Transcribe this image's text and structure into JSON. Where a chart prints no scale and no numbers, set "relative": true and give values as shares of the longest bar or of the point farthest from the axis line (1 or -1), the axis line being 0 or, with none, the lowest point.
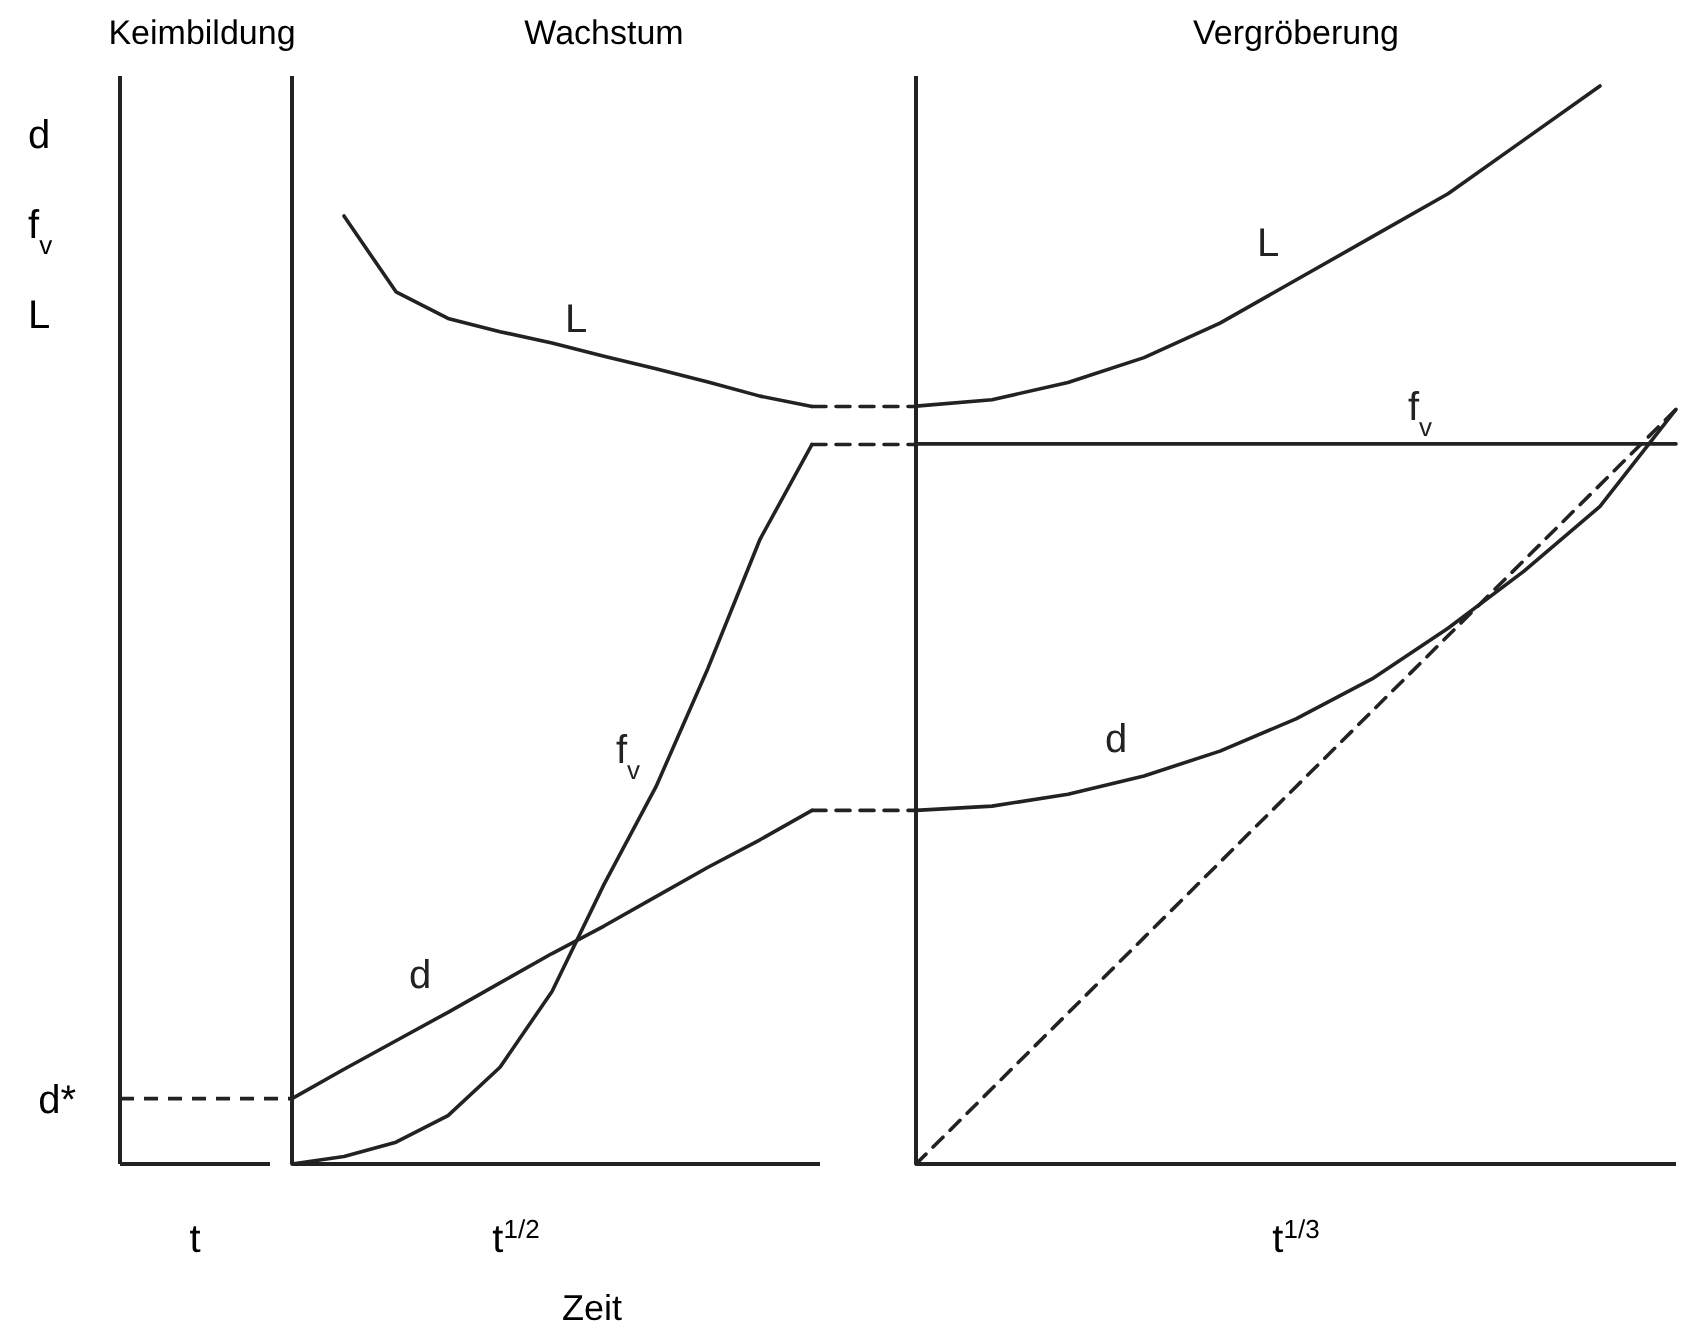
{
  "chart_data": [
    {
      "type": "other",
      "title": "Keimbildung",
      "xlabel": "t",
      "annotations": [
        "d",
        "f$_{v}$",
        "L"
      ]
    },
    {
      "type": "line",
      "title": "Wachstum",
      "xlabel": "t$^{1/2}$",
      "relative": true,
      "annotations": [
        "Zeit"
      ],
      "categories": [
        null,
        null,
        null,
        null,
        null,
        null,
        null,
        null,
        null,
        null,
        null,
        null,
        null
      ],
      "ref_lines": [
        {
          "axis": "y",
          "value": 0.069,
          "label": "d*",
          "line_style": "dashed",
          "color": "#222222"
        }
      ],
      "series": [
        {
          "name": "L",
          "color": "#222222",
          "values": [
            null,
            1.0,
            0.92,
            0.892,
            0.878,
            0.866,
            0.852,
            0.839,
            0.825,
            0.81,
            0.799,
            null,
            null
          ]
        },
        {
          "name": "f$_{v}$",
          "color": "#222222",
          "values": [
            0,
            0.008,
            0.023,
            0.051,
            0.102,
            0.182,
            0.295,
            0.398,
            0.523,
            0.659,
            0.759,
            null,
            null
          ]
        },
        {
          "name": "d",
          "color": "#222222",
          "values": [
            0.069,
            0.1,
            0.13,
            0.16,
            0.191,
            0.222,
            0.251,
            0.282,
            0.313,
            0.342,
            0.373,
            null,
            null
          ]
        },
        {
          "color": "#222222",
          "line_style": "dashed",
          "values": [
            null,
            null,
            null,
            null,
            null,
            null,
            null,
            null,
            null,
            null,
            0.799,
            0.799,
            0.799
          ]
        },
        {
          "color": "#222222",
          "line_style": "dashed",
          "values": [
            null,
            null,
            null,
            null,
            null,
            null,
            null,
            null,
            null,
            null,
            0.759,
            0.759,
            0.759
          ]
        },
        {
          "color": "#222222",
          "line_style": "dashed",
          "values": [
            null,
            null,
            null,
            null,
            null,
            null,
            null,
            null,
            null,
            null,
            0.373,
            0.373,
            0.373
          ]
        }
      ]
    },
    {
      "type": "line",
      "title": "Vergröberung",
      "xlabel": "t$^{1/3}$",
      "relative": true,
      "categories": [
        null,
        null,
        null,
        null,
        null,
        null,
        null,
        null,
        null,
        null,
        null
      ],
      "series": [
        {
          "name": "L",
          "color": "#222222",
          "values": [
            0.703,
            0.709,
            0.725,
            0.748,
            0.78,
            0.82,
            0.86,
            0.9,
            0.95,
            1.0,
            null
          ]
        },
        {
          "name": "f$_{v}$",
          "color": "#222222",
          "values": [
            0.668,
            0.668,
            0.668,
            0.668,
            0.668,
            0.668,
            0.668,
            0.668,
            0.668,
            0.668,
            0.668
          ]
        },
        {
          "name": "d",
          "color": "#222222",
          "values": [
            0.328,
            0.332,
            0.343,
            0.36,
            0.383,
            0.413,
            0.45,
            0.497,
            0.55,
            0.61,
            0.7
          ]
        },
        {
          "color": "#222222",
          "line_style": "dashed",
          "values": [
            0,
            0.07,
            0.14,
            0.21,
            0.28,
            0.35,
            0.42,
            0.49,
            0.56,
            0.63,
            0.7
          ]
        }
      ]
    }
  ]
}
